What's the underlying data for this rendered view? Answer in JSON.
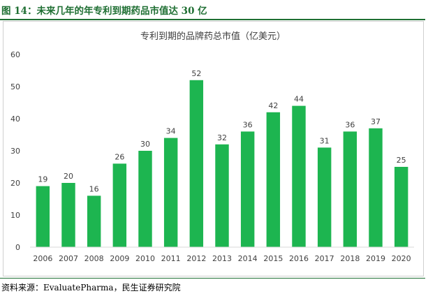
{
  "caption": "图  14：未来几年的年专利到期药品市值达 30 亿",
  "source": "资料来源：EvaluatePharma，民生证券研究院",
  "colors": {
    "bar": "#1db550",
    "accent": "#1f6f33",
    "axis": "#d9d9d9"
  },
  "chart_data": {
    "type": "bar",
    "title": "专利到期的品牌药总市值（亿美元）",
    "xlabel": "",
    "ylabel": "",
    "categories": [
      "2006",
      "2007",
      "2008",
      "2009",
      "2010",
      "2011",
      "2012",
      "2013",
      "2014",
      "2015",
      "2016",
      "2017",
      "2018",
      "2019",
      "2020"
    ],
    "values": [
      19,
      20,
      16,
      26,
      30,
      34,
      52,
      32,
      36,
      42,
      44,
      31,
      36,
      37,
      25
    ],
    "ylim": [
      0,
      60
    ],
    "yticks": [
      0,
      10,
      20,
      30,
      40,
      50,
      60
    ],
    "grid": false,
    "legend": "none"
  }
}
